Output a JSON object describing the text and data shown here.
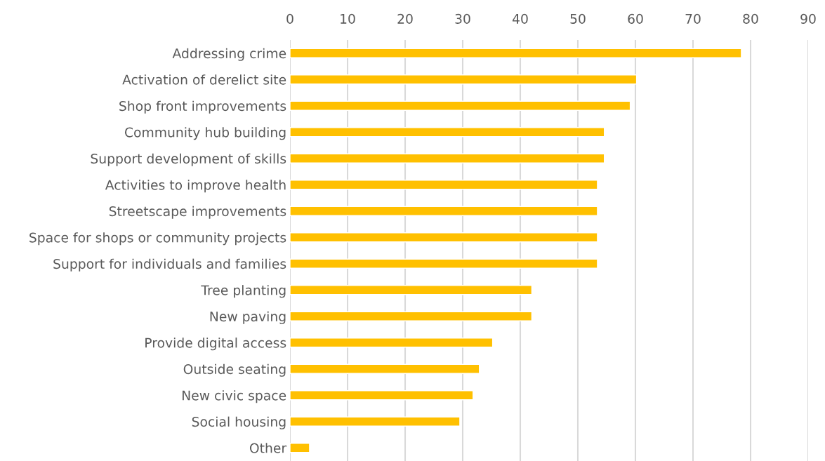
{
  "chart_data": {
    "type": "bar",
    "orientation": "horizontal",
    "categories": [
      "Addressing crime",
      "Activation of derelict site",
      "Shop front improvements",
      "Community hub building",
      "Support development of skills",
      "Activities to improve health",
      "Streetscape improvements",
      "Space for shops or community projects",
      "Support for individuals and families",
      "Tree planting",
      "New paving",
      "Provide digital access",
      "Outside seating",
      "New civic space",
      "Social housing",
      "Other"
    ],
    "values": [
      78.4,
      60.2,
      59.1,
      54.6,
      54.6,
      53.4,
      53.4,
      53.4,
      53.4,
      42.0,
      42.0,
      35.2,
      32.9,
      31.8,
      29.5,
      3.4
    ],
    "color": "#ffc000",
    "xlim": [
      0,
      90
    ],
    "xticks": [
      0,
      10,
      20,
      30,
      40,
      50,
      60,
      70,
      80,
      90
    ],
    "grid": "x",
    "legend": false
  }
}
